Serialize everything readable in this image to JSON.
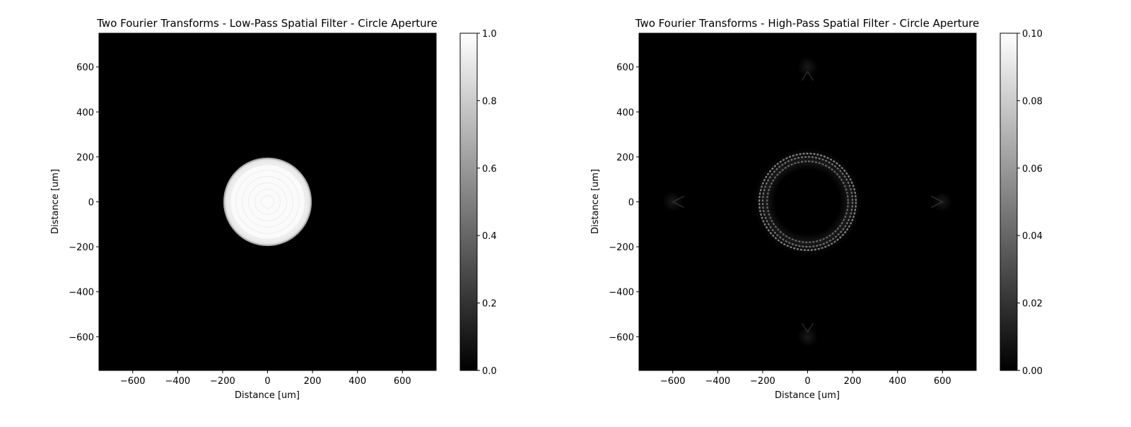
{
  "chart_data": [
    {
      "type": "heatmap",
      "title": "Two Fourier Transforms - Low-Pass Spatial Filter - Circle Aperture",
      "xlabel": "Distance [um]",
      "ylabel": "Distance [um]",
      "xlim": [
        -750,
        750
      ],
      "ylim": [
        -750,
        750
      ],
      "xticks": [
        -600,
        -400,
        -200,
        0,
        200,
        400,
        600
      ],
      "yticks": [
        -600,
        -400,
        -200,
        0,
        200,
        400,
        600
      ],
      "colormap": "gray",
      "colorbar": {
        "range": [
          0,
          1.0
        ],
        "ticks": [
          "0.0",
          "0.2",
          "0.4",
          "0.6",
          "0.8",
          "1.0"
        ]
      },
      "features": [
        {
          "kind": "filled_disk",
          "center": [
            0,
            0
          ],
          "radius": 197,
          "intensity": 1.0
        }
      ],
      "grid": false
    },
    {
      "type": "heatmap",
      "title": "Two Fourier Transforms - High-Pass Spatial Filter - Circle Aperture",
      "xlabel": "Distance [um]",
      "ylabel": "Distance [um]",
      "xlim": [
        -750,
        750
      ],
      "ylim": [
        -750,
        750
      ],
      "xticks": [
        -600,
        -400,
        -200,
        0,
        200,
        400,
        600
      ],
      "yticks": [
        -600,
        -400,
        -200,
        0,
        200,
        400,
        600
      ],
      "colormap": "gray",
      "colorbar": {
        "range": [
          0,
          0.1
        ],
        "ticks": [
          "0.00",
          "0.02",
          "0.04",
          "0.06",
          "0.08",
          "0.10"
        ]
      },
      "features": [
        {
          "kind": "ring",
          "center": [
            0,
            0
          ],
          "radius": 215,
          "intensity": 0.05
        },
        {
          "kind": "ring",
          "center": [
            0,
            0
          ],
          "radius": 200,
          "intensity": 0.04
        },
        {
          "kind": "ring",
          "center": [
            0,
            0
          ],
          "radius": 180,
          "intensity": 0.035
        },
        {
          "kind": "side_lobe",
          "center": [
            0,
            600
          ],
          "intensity": 0.01
        },
        {
          "kind": "side_lobe",
          "center": [
            0,
            -600
          ],
          "intensity": 0.01
        },
        {
          "kind": "side_lobe",
          "center": [
            600,
            0
          ],
          "intensity": 0.01
        },
        {
          "kind": "side_lobe",
          "center": [
            -600,
            0
          ],
          "intensity": 0.01
        }
      ],
      "grid": false
    }
  ]
}
